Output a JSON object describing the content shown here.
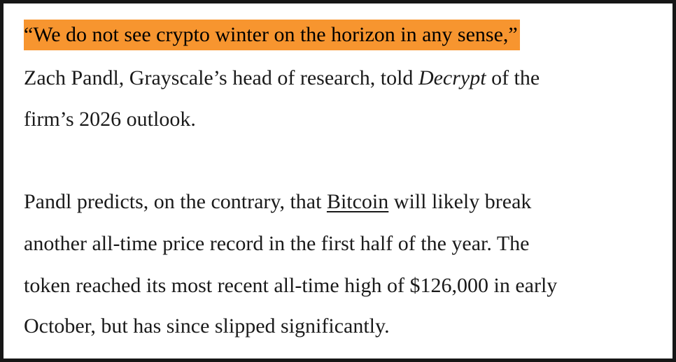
{
  "paragraphs": [
    {
      "quote_highlighted": "“We do not see crypto winter on the horizon in any sense,”",
      "line2_a": "Zach Pandl, Grayscale’s head of research, told ",
      "line2_em": "Decrypt",
      "line2_b": " of the",
      "line3": "firm’s 2026 outlook.",
      "highlight_color": "#f7952f"
    },
    {
      "line1_a": "Pandl predicts, on the contrary, that ",
      "line1_link": "Bitcoin",
      "line1_b": " will likely break",
      "line2": "another all-time price record in the first half of the year. The",
      "line3": "token reached its most recent all-time high of $126,000 in early",
      "line4": "October, but has since slipped significantly."
    }
  ]
}
